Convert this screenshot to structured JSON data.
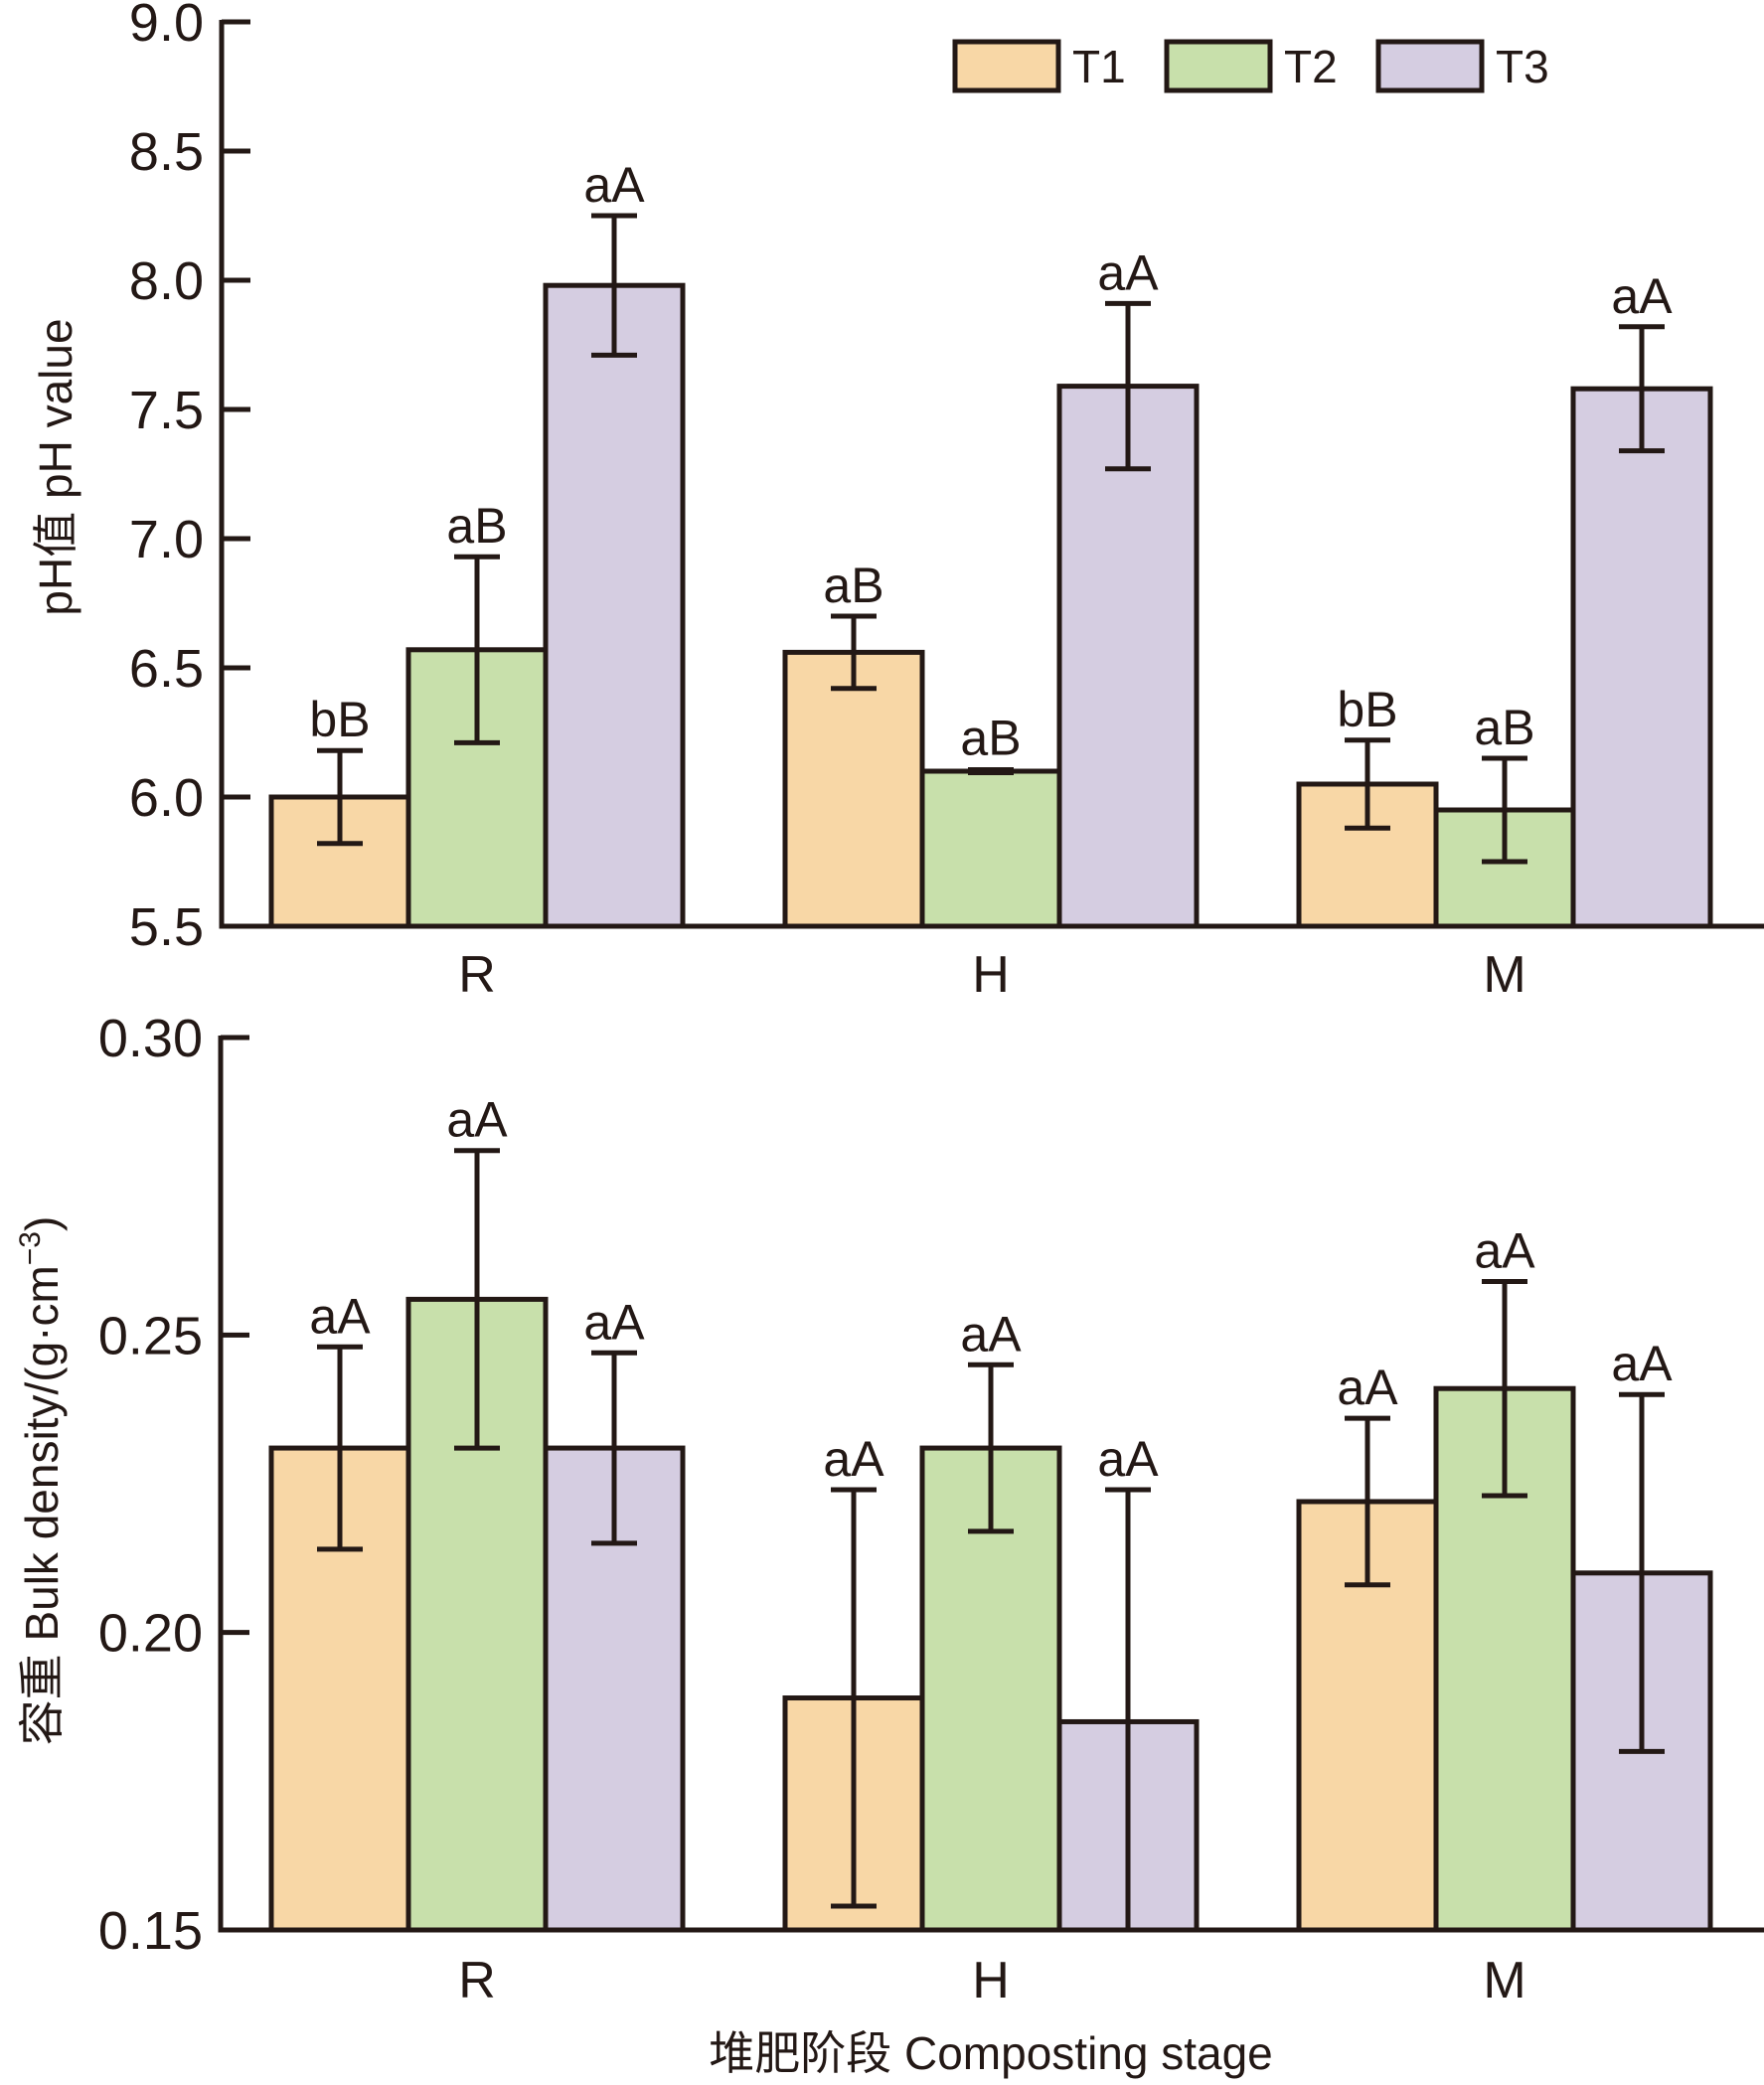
{
  "chart_data": [
    {
      "type": "bar",
      "title": "",
      "xlabel": "",
      "ylabel": "pH值 pH value",
      "categories": [
        "R",
        "H",
        "M"
      ],
      "ylim": [
        5.5,
        9.0
      ],
      "yticks": [
        "5.5",
        "6.0",
        "6.5",
        "7.0",
        "7.5",
        "8.0",
        "8.5",
        "9.0"
      ],
      "ytick_values": [
        5.5,
        6.0,
        6.5,
        7.0,
        7.5,
        8.0,
        8.5,
        9.0
      ],
      "grid": false,
      "legend_position": "top-right",
      "series": [
        {
          "name": "T1",
          "color": "#F8D7A6",
          "values": [
            6.0,
            6.56,
            6.05
          ],
          "error": [
            0.18,
            0.14,
            0.17
          ],
          "labels": [
            "bB",
            "aB",
            "bB"
          ]
        },
        {
          "name": "T2",
          "color": "#C8E0AB",
          "values": [
            6.57,
            6.1,
            5.95
          ],
          "error": [
            0.36,
            0.01,
            0.2
          ],
          "labels": [
            "aB",
            "aB",
            "aB"
          ]
        },
        {
          "name": "T3",
          "color": "#D5CDE1",
          "values": [
            7.98,
            7.59,
            7.58
          ],
          "error": [
            0.27,
            0.32,
            0.24
          ],
          "labels": [
            "aA",
            "aA",
            "aA"
          ]
        }
      ]
    },
    {
      "type": "bar",
      "title": "",
      "xlabel": "堆肥阶段 Composting stage",
      "ylabel": "容重 Bulk density/(g·cm",
      "ylabel_sup": "−3",
      "ylabel_end": ")",
      "categories": [
        "R",
        "H",
        "M"
      ],
      "ylim": [
        0.15,
        0.3
      ],
      "yticks": [
        "0.15",
        "0.20",
        "0.25",
        "0.30"
      ],
      "ytick_values": [
        0.15,
        0.2,
        0.25,
        0.3
      ],
      "grid": false,
      "series": [
        {
          "name": "T1",
          "color": "#F8D7A6",
          "values": [
            0.231,
            0.189,
            0.222
          ],
          "error": [
            0.017,
            0.035,
            0.014
          ],
          "labels": [
            "aA",
            "aA",
            "aA"
          ]
        },
        {
          "name": "T2",
          "color": "#C8E0AB",
          "values": [
            0.256,
            0.231,
            0.241
          ],
          "error": [
            0.025,
            0.014,
            0.018
          ],
          "labels": [
            "aA",
            "aA",
            "aA"
          ]
        },
        {
          "name": "T3",
          "color": "#D5CDE1",
          "values": [
            0.231,
            0.185,
            0.21
          ],
          "error": [
            0.016,
            0.039,
            0.03
          ],
          "labels": [
            "aA",
            "aA",
            "aA"
          ]
        }
      ]
    }
  ],
  "legend": {
    "items": [
      {
        "label": "T1",
        "color": "#F8D7A6"
      },
      {
        "label": "T2",
        "color": "#C8E0AB"
      },
      {
        "label": "T3",
        "color": "#D5CDE1"
      }
    ]
  },
  "colors": {
    "stroke": "#231815"
  }
}
